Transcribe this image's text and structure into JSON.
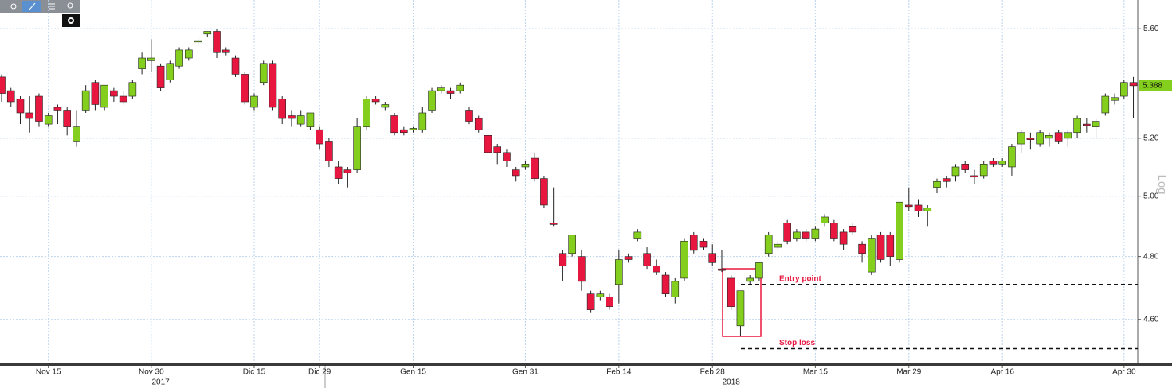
{
  "chart_data": {
    "type": "candlestick",
    "log": true,
    "grid": true,
    "up_color": "#84cf1d",
    "down_color": "#e8173f",
    "ylim": [
      4.47,
      5.71
    ],
    "yticks": [
      {
        "value": 4.6,
        "label": "4.60"
      },
      {
        "value": 4.8,
        "label": "4.80"
      },
      {
        "value": 5.0,
        "label": "5.00"
      },
      {
        "value": 5.2,
        "label": "5.20"
      },
      {
        "value": 5.6,
        "label": "5.60"
      }
    ],
    "ylabel": "Log",
    "last_price": 5.388,
    "xticks": [
      {
        "value": 5,
        "label": "Nov 15"
      },
      {
        "value": 16,
        "label": "Nov 30"
      },
      {
        "value": 27,
        "label": "Dic 15"
      },
      {
        "value": 34,
        "label": "Dic 29"
      },
      {
        "value": 44,
        "label": "Gen 15"
      },
      {
        "value": 56,
        "label": "Gen 31"
      },
      {
        "value": 66,
        "label": "Feb 14"
      },
      {
        "value": 76,
        "label": "Feb 28"
      },
      {
        "value": 87,
        "label": "Mar 15"
      },
      {
        "value": 97,
        "label": "Mar 29"
      },
      {
        "value": 107,
        "label": "Apr 16"
      },
      {
        "value": 120,
        "label": "Apr 30"
      }
    ],
    "years": [
      {
        "value": 17,
        "label": "2017"
      },
      {
        "value": 78,
        "label": "2018"
      }
    ],
    "annotations": [
      {
        "text": "Entry point",
        "level": 4.71
      },
      {
        "text": "Stop loss",
        "level": 4.51
      }
    ],
    "candles": [
      [
        5.42,
        5.43,
        5.33,
        5.36
      ],
      [
        5.37,
        5.38,
        5.31,
        5.33
      ],
      [
        5.34,
        5.35,
        5.25,
        5.29
      ],
      [
        5.29,
        5.35,
        5.22,
        5.27
      ],
      [
        5.35,
        5.36,
        5.24,
        5.26
      ],
      [
        5.25,
        5.29,
        5.24,
        5.28
      ],
      [
        5.31,
        5.32,
        5.25,
        5.3
      ],
      [
        5.3,
        5.31,
        5.21,
        5.24
      ],
      [
        5.19,
        5.3,
        5.17,
        5.24
      ],
      [
        5.3,
        5.39,
        5.29,
        5.37
      ],
      [
        5.4,
        5.41,
        5.3,
        5.32
      ],
      [
        5.31,
        5.39,
        5.3,
        5.39
      ],
      [
        5.37,
        5.38,
        5.33,
        5.35
      ],
      [
        5.35,
        5.37,
        5.32,
        5.33
      ],
      [
        5.35,
        5.41,
        5.34,
        5.4
      ],
      [
        5.45,
        5.51,
        5.43,
        5.49
      ],
      [
        5.48,
        5.56,
        5.44,
        5.49
      ],
      [
        5.46,
        5.47,
        5.37,
        5.38
      ],
      [
        5.41,
        5.48,
        5.4,
        5.47
      ],
      [
        5.46,
        5.53,
        5.45,
        5.52
      ],
      [
        5.49,
        5.53,
        5.48,
        5.52
      ],
      [
        5.55,
        5.57,
        5.54,
        5.555
      ],
      [
        5.58,
        5.59,
        5.57,
        5.59
      ],
      [
        5.59,
        5.6,
        5.49,
        5.51
      ],
      [
        5.52,
        5.53,
        5.5,
        5.51
      ],
      [
        5.49,
        5.5,
        5.42,
        5.43
      ],
      [
        5.43,
        5.44,
        5.32,
        5.33
      ],
      [
        5.31,
        5.36,
        5.3,
        5.35
      ],
      [
        5.4,
        5.48,
        5.39,
        5.47
      ],
      [
        5.47,
        5.48,
        5.3,
        5.31
      ],
      [
        5.34,
        5.35,
        5.25,
        5.27
      ],
      [
        5.28,
        5.3,
        5.24,
        5.27
      ],
      [
        5.25,
        5.3,
        5.24,
        5.28
      ],
      [
        5.24,
        5.29,
        5.23,
        5.29
      ],
      [
        5.23,
        5.24,
        5.16,
        5.18
      ],
      [
        5.19,
        5.2,
        5.1,
        5.12
      ],
      [
        5.1,
        5.12,
        5.04,
        5.06
      ],
      [
        5.09,
        5.1,
        5.03,
        5.08
      ],
      [
        5.09,
        5.27,
        5.08,
        5.24
      ],
      [
        5.24,
        5.35,
        5.23,
        5.34
      ],
      [
        5.34,
        5.35,
        5.32,
        5.33
      ],
      [
        5.31,
        5.33,
        5.3,
        5.32
      ],
      [
        5.28,
        5.29,
        5.21,
        5.22
      ],
      [
        5.23,
        5.24,
        5.21,
        5.22
      ],
      [
        5.23,
        5.24,
        5.22,
        5.235
      ],
      [
        5.23,
        5.31,
        5.22,
        5.29
      ],
      [
        5.3,
        5.38,
        5.29,
        5.37
      ],
      [
        5.37,
        5.39,
        5.36,
        5.38
      ],
      [
        5.37,
        5.38,
        5.34,
        5.36
      ],
      [
        5.37,
        5.4,
        5.36,
        5.39
      ],
      [
        5.3,
        5.31,
        5.25,
        5.26
      ],
      [
        5.27,
        5.28,
        5.22,
        5.23
      ],
      [
        5.21,
        5.22,
        5.14,
        5.15
      ],
      [
        5.17,
        5.18,
        5.11,
        5.15
      ],
      [
        5.15,
        5.16,
        5.1,
        5.12
      ],
      [
        5.09,
        5.1,
        5.05,
        5.07
      ],
      [
        5.1,
        5.12,
        5.09,
        5.11
      ],
      [
        5.13,
        5.15,
        5.05,
        5.06
      ],
      [
        5.06,
        5.07,
        4.96,
        4.97
      ],
      [
        4.91,
        5.03,
        4.9,
        4.905
      ],
      [
        4.81,
        4.82,
        4.72,
        4.77
      ],
      [
        4.81,
        4.87,
        4.8,
        4.87
      ],
      [
        4.8,
        4.82,
        4.69,
        4.72
      ],
      [
        4.68,
        4.69,
        4.62,
        4.63
      ],
      [
        4.67,
        4.69,
        4.66,
        4.68
      ],
      [
        4.67,
        4.68,
        4.63,
        4.64
      ],
      [
        4.71,
        4.82,
        4.65,
        4.79
      ],
      [
        4.8,
        4.81,
        4.78,
        4.79
      ],
      [
        4.86,
        4.89,
        4.85,
        4.88
      ],
      [
        4.81,
        4.83,
        4.76,
        4.77
      ],
      [
        4.77,
        4.79,
        4.74,
        4.75
      ],
      [
        4.74,
        4.75,
        4.67,
        4.68
      ],
      [
        4.67,
        4.73,
        4.65,
        4.72
      ],
      [
        4.73,
        4.86,
        4.72,
        4.85
      ],
      [
        4.87,
        4.88,
        4.81,
        4.82
      ],
      [
        4.85,
        4.86,
        4.82,
        4.83
      ],
      [
        4.81,
        4.84,
        4.77,
        4.78
      ],
      [
        4.76,
        4.82,
        4.75,
        4.755
      ],
      [
        4.73,
        4.74,
        4.63,
        4.64
      ],
      [
        4.58,
        4.69,
        4.55,
        4.69
      ],
      [
        4.72,
        4.74,
        4.71,
        4.73
      ],
      [
        4.73,
        4.78,
        4.72,
        4.78
      ],
      [
        4.81,
        4.88,
        4.8,
        4.87
      ],
      [
        4.83,
        4.85,
        4.82,
        4.84
      ],
      [
        4.91,
        4.92,
        4.84,
        4.85
      ],
      [
        4.86,
        4.89,
        4.85,
        4.88
      ],
      [
        4.88,
        4.89,
        4.85,
        4.86
      ],
      [
        4.86,
        4.9,
        4.85,
        4.89
      ],
      [
        4.91,
        4.94,
        4.9,
        4.93
      ],
      [
        4.91,
        4.92,
        4.85,
        4.86
      ],
      [
        4.88,
        4.89,
        4.82,
        4.84
      ],
      [
        4.9,
        4.91,
        4.87,
        4.88
      ],
      [
        4.84,
        4.85,
        4.78,
        4.81
      ],
      [
        4.75,
        4.87,
        4.74,
        4.86
      ],
      [
        4.87,
        4.88,
        4.78,
        4.79
      ],
      [
        4.87,
        4.88,
        4.77,
        4.8
      ],
      [
        4.79,
        4.98,
        4.78,
        4.98
      ],
      [
        4.97,
        5.03,
        4.95,
        4.965
      ],
      [
        4.97,
        4.99,
        4.93,
        4.95
      ],
      [
        4.95,
        4.97,
        4.9,
        4.96
      ],
      [
        5.03,
        5.06,
        5.01,
        5.05
      ],
      [
        5.06,
        5.07,
        5.03,
        5.05
      ],
      [
        5.07,
        5.11,
        5.05,
        5.1
      ],
      [
        5.11,
        5.12,
        5.08,
        5.09
      ],
      [
        5.07,
        5.09,
        5.04,
        5.065
      ],
      [
        5.07,
        5.12,
        5.06,
        5.11
      ],
      [
        5.12,
        5.13,
        5.1,
        5.11
      ],
      [
        5.11,
        5.13,
        5.1,
        5.12
      ],
      [
        5.1,
        5.18,
        5.07,
        5.17
      ],
      [
        5.18,
        5.23,
        5.15,
        5.22
      ],
      [
        5.2,
        5.22,
        5.16,
        5.195
      ],
      [
        5.18,
        5.23,
        5.17,
        5.22
      ],
      [
        5.2,
        5.22,
        5.17,
        5.21
      ],
      [
        5.22,
        5.23,
        5.18,
        5.19
      ],
      [
        5.2,
        5.23,
        5.17,
        5.22
      ],
      [
        5.22,
        5.28,
        5.2,
        5.27
      ],
      [
        5.25,
        5.27,
        5.22,
        5.245
      ],
      [
        5.24,
        5.27,
        5.2,
        5.26
      ],
      [
        5.29,
        5.36,
        5.28,
        5.35
      ],
      [
        5.335,
        5.36,
        5.32,
        5.345
      ],
      [
        5.35,
        5.41,
        5.34,
        5.4
      ],
      [
        5.4,
        5.42,
        5.27,
        5.388
      ]
    ]
  }
}
